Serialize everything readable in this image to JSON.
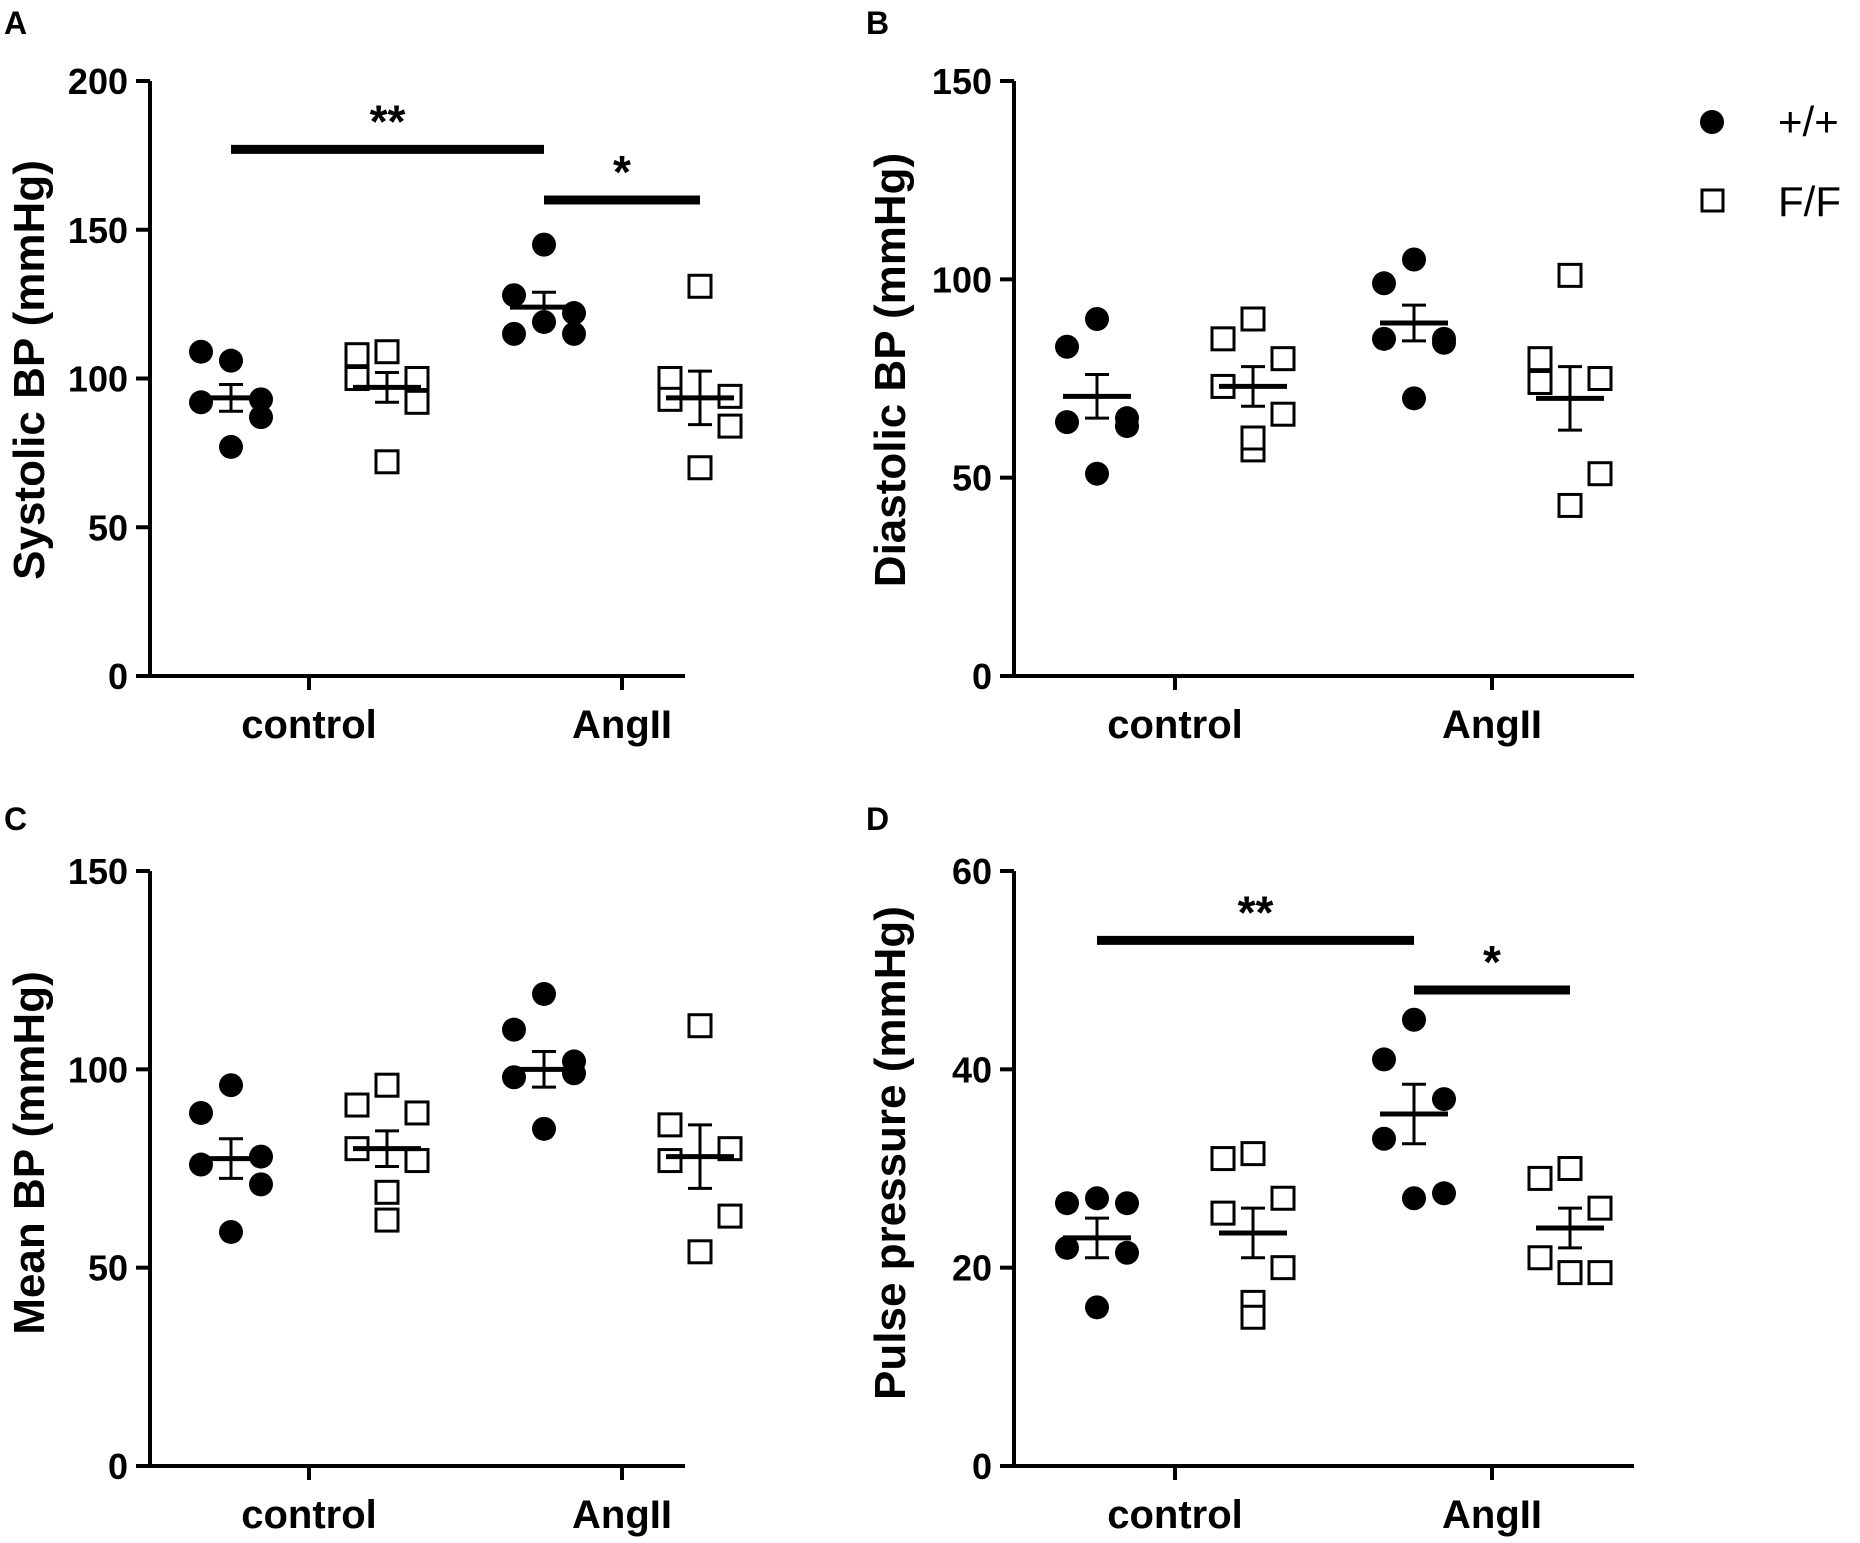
{
  "figure": {
    "legend": [
      {
        "label": "+/+",
        "marker": "filled-circle"
      },
      {
        "label": "F/F",
        "marker": "open-square"
      }
    ],
    "colors": {
      "ink": "#000000",
      "background": "#ffffff"
    }
  },
  "chart_data": [
    {
      "panel": "A",
      "type": "scatter",
      "ylabel": "Systolic BP (mmHg)",
      "categories": [
        "control",
        "AngII"
      ],
      "ylim": [
        0,
        200
      ],
      "yticks": [
        0,
        50,
        100,
        150,
        200
      ],
      "series": [
        {
          "name": "+/+",
          "marker": "filled-circle",
          "groups": [
            {
              "category": "control",
              "points": [
                106,
                109,
                93,
                92,
                87,
                77
              ],
              "mean": 93.5,
              "sem": 4.5
            },
            {
              "category": "AngII",
              "points": [
                145,
                128,
                122,
                115,
                115,
                119
              ],
              "mean": 124,
              "sem": 5
            }
          ]
        },
        {
          "name": "F/F",
          "marker": "open-square",
          "groups": [
            {
              "category": "control",
              "points": [
                109,
                108,
                100,
                100,
                92,
                72
              ],
              "mean": 97,
              "sem": 5
            },
            {
              "category": "AngII",
              "points": [
                131,
                100,
                94,
                93,
                84,
                70
              ],
              "mean": 93.5,
              "sem": 9
            }
          ]
        }
      ],
      "significance": [
        {
          "label": "**",
          "from": "control",
          "to": "AngII +/+",
          "y": 177
        },
        {
          "label": "*",
          "from": "AngII +/+",
          "to": "AngII F/F",
          "y": 160
        }
      ]
    },
    {
      "panel": "B",
      "type": "scatter",
      "ylabel": "Diastolic BP (mmHg)",
      "categories": [
        "control",
        "AngII"
      ],
      "ylim": [
        0,
        150
      ],
      "yticks": [
        0,
        50,
        100,
        150
      ],
      "series": [
        {
          "name": "+/+",
          "marker": "filled-circle",
          "groups": [
            {
              "category": "control",
              "points": [
                90,
                83,
                65,
                64,
                63,
                51
              ],
              "mean": 70.5,
              "sem": 5.5
            },
            {
              "category": "AngII",
              "points": [
                105,
                99,
                85,
                85,
                84,
                70
              ],
              "mean": 89,
              "sem": 4.5
            }
          ]
        },
        {
          "name": "F/F",
          "marker": "open-square",
          "groups": [
            {
              "category": "control",
              "points": [
                90,
                85,
                80,
                73,
                66,
                57,
                60
              ],
              "mean": 73,
              "sem": 5
            },
            {
              "category": "AngII",
              "points": [
                101,
                80,
                75,
                74,
                51,
                43
              ],
              "mean": 70,
              "sem": 8
            }
          ]
        }
      ],
      "significance": []
    },
    {
      "panel": "C",
      "type": "scatter",
      "ylabel": "Mean BP (mmHg)",
      "categories": [
        "control",
        "AngII"
      ],
      "ylim": [
        0,
        150
      ],
      "yticks": [
        0,
        50,
        100,
        150
      ],
      "series": [
        {
          "name": "+/+",
          "marker": "filled-circle",
          "groups": [
            {
              "category": "control",
              "points": [
                96,
                89,
                78,
                76,
                71,
                59
              ],
              "mean": 77.5,
              "sem": 5
            },
            {
              "category": "AngII",
              "points": [
                119,
                110,
                102,
                98,
                99,
                85
              ],
              "mean": 100,
              "sem": 4.5
            }
          ]
        },
        {
          "name": "F/F",
          "marker": "open-square",
          "groups": [
            {
              "category": "control",
              "points": [
                96,
                91,
                89,
                80,
                77,
                69,
                62
              ],
              "mean": 80,
              "sem": 4.5
            },
            {
              "category": "AngII",
              "points": [
                111,
                86,
                80,
                77,
                63,
                54
              ],
              "mean": 78,
              "sem": 8
            }
          ]
        }
      ],
      "significance": []
    },
    {
      "panel": "D",
      "type": "scatter",
      "ylabel": "Pulse pressure (mmHg)",
      "categories": [
        "control",
        "AngII"
      ],
      "ylim": [
        0,
        60
      ],
      "yticks": [
        0,
        20,
        40,
        60
      ],
      "series": [
        {
          "name": "+/+",
          "marker": "filled-circle",
          "groups": [
            {
              "category": "control",
              "points": [
                27,
                26.5,
                26.5,
                22,
                21.5,
                16
              ],
              "mean": 23,
              "sem": 2
            },
            {
              "category": "AngII",
              "points": [
                45,
                41,
                37,
                33,
                27.5,
                27
              ],
              "mean": 35.5,
              "sem": 3
            }
          ]
        },
        {
          "name": "F/F",
          "marker": "open-square",
          "groups": [
            {
              "category": "control",
              "points": [
                31.5,
                31,
                27,
                25.5,
                20,
                16.5,
                15
              ],
              "mean": 23.5,
              "sem": 2.5
            },
            {
              "category": "AngII",
              "points": [
                30,
                29,
                26,
                21,
                19.5,
                19.5
              ],
              "mean": 24,
              "sem": 2
            }
          ]
        }
      ],
      "significance": [
        {
          "label": "**",
          "from": "control",
          "to": "AngII +/+",
          "y": 53
        },
        {
          "label": "*",
          "from": "AngII +/+",
          "to": "AngII F/F",
          "y": 48
        }
      ]
    }
  ]
}
